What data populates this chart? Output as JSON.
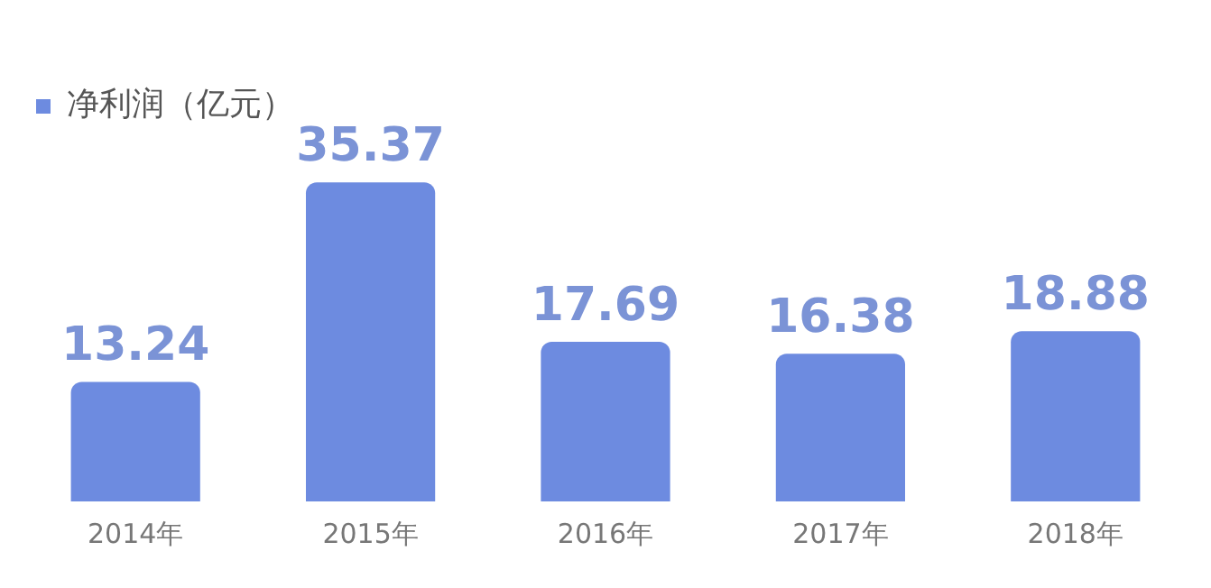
{
  "chart_data": {
    "type": "bar",
    "categories": [
      "2014年",
      "2015年",
      "2016年",
      "2017年",
      "2018年"
    ],
    "series": [
      {
        "name": "净利润（亿元）",
        "color": "#6d8be0",
        "values": [
          13.24,
          35.37,
          17.69,
          16.38,
          18.88
        ]
      }
    ],
    "data_labels": true,
    "legend": "top left",
    "grid": false,
    "tick_labels": "x"
  }
}
